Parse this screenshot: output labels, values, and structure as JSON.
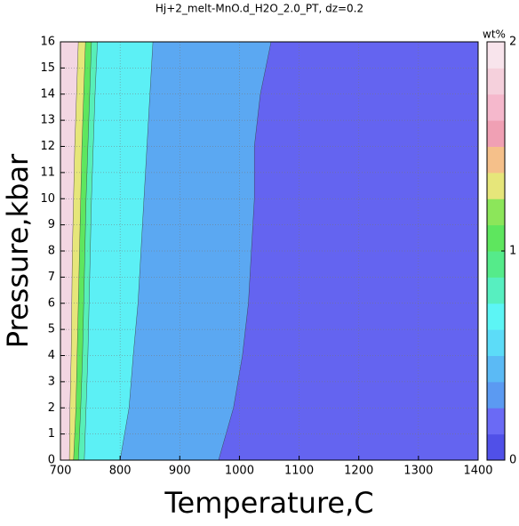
{
  "chart_data": {
    "type": "contour",
    "title": "Hj+2_melt-MnO.d_H2O_2.0_PT, dz=0.2",
    "xlabel": "Temperature,C",
    "ylabel": "Pressure,kbar",
    "xlim": [
      700,
      1400
    ],
    "xticks": [
      700,
      800,
      900,
      1000,
      1100,
      1200,
      1300,
      1400
    ],
    "ylim": [
      0,
      16
    ],
    "yticks": [
      0,
      1,
      2,
      3,
      4,
      5,
      6,
      7,
      8,
      9,
      10,
      11,
      12,
      13,
      14,
      15,
      16
    ],
    "grid": true,
    "pressures": [
      0,
      2,
      4,
      6,
      8,
      10,
      12,
      14,
      16
    ],
    "series": [
      {
        "color": "#f3d6e2",
        "values": [
          700,
          700,
          700,
          700,
          700,
          700,
          700,
          700,
          700
        ]
      },
      {
        "color": "#e6e67a",
        "values": [
          715,
          716,
          718,
          719,
          720,
          722,
          724,
          727,
          730
        ]
      },
      {
        "color": "#5ee65e",
        "values": [
          722,
          726,
          728,
          730,
          732,
          734,
          736,
          739,
          742
        ]
      },
      {
        "color": "#57efb8",
        "values": [
          730,
          734,
          737,
          739,
          741,
          743,
          746,
          749,
          752
        ]
      },
      {
        "color": "#5cf0f5",
        "values": [
          740,
          743,
          746,
          748,
          750,
          752,
          755,
          758,
          762
        ]
      },
      {
        "color": "#5ba8f2",
        "values": [
          800,
          815,
          822,
          830,
          835,
          840,
          845,
          850,
          855
        ]
      },
      {
        "color": "#6464f0",
        "values": [
          965,
          990,
          1005,
          1015,
          1020,
          1025,
          1025,
          1035,
          1053
        ]
      }
    ],
    "colorbar": {
      "label": "wt%",
      "lim": [
        0,
        2
      ],
      "ticks": [
        0,
        1,
        2
      ],
      "colors": [
        "#5050e8",
        "#6a6af5",
        "#5b9af2",
        "#5bbaf5",
        "#5cdcf8",
        "#5cf5f5",
        "#57efc0",
        "#55eb8a",
        "#5ee65e",
        "#8ce65a",
        "#e6e67a",
        "#f5c08a",
        "#f0a0b4",
        "#f5b8cc",
        "#f5d0dc",
        "#f8e4ec"
      ]
    }
  }
}
